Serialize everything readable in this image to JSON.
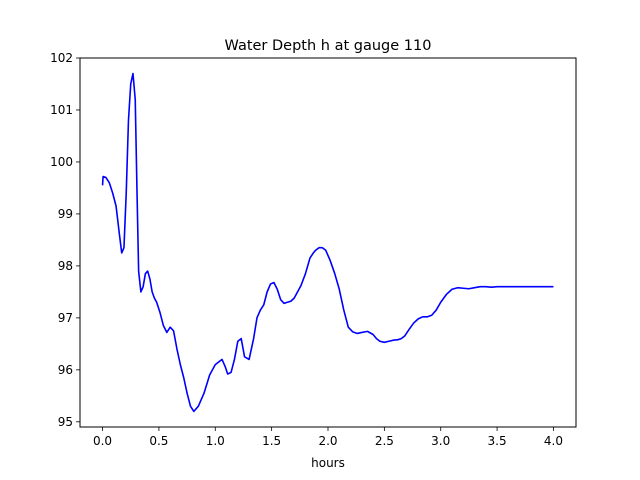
{
  "chart_data": {
    "type": "line",
    "title": "Water Depth h at gauge 110",
    "xlabel": "hours",
    "ylabel": "",
    "xlim": [
      -0.2,
      4.2
    ],
    "ylim": [
      94.9,
      102.0
    ],
    "xticks": [
      0.0,
      0.5,
      1.0,
      1.5,
      2.0,
      2.5,
      3.0,
      3.5,
      4.0
    ],
    "xtick_labels": [
      "0.0",
      "0.5",
      "1.0",
      "1.5",
      "2.0",
      "2.5",
      "3.0",
      "3.5",
      "4.0"
    ],
    "yticks": [
      95,
      96,
      97,
      98,
      99,
      100,
      101,
      102
    ],
    "ytick_labels": [
      "95",
      "96",
      "97",
      "98",
      "99",
      "100",
      "101",
      "102"
    ],
    "grid": false,
    "legend": "none",
    "series": [
      {
        "color": "#0000ff",
        "x": [
          0.0,
          0.005,
          0.03,
          0.06,
          0.09,
          0.12,
          0.15,
          0.17,
          0.19,
          0.21,
          0.23,
          0.25,
          0.27,
          0.29,
          0.305,
          0.32,
          0.34,
          0.36,
          0.38,
          0.4,
          0.42,
          0.44,
          0.46,
          0.48,
          0.51,
          0.54,
          0.57,
          0.6,
          0.63,
          0.66,
          0.69,
          0.72,
          0.75,
          0.78,
          0.81,
          0.85,
          0.9,
          0.95,
          1.0,
          1.03,
          1.06,
          1.09,
          1.11,
          1.14,
          1.17,
          1.2,
          1.23,
          1.26,
          1.3,
          1.34,
          1.37,
          1.4,
          1.43,
          1.46,
          1.49,
          1.52,
          1.55,
          1.58,
          1.61,
          1.64,
          1.67,
          1.7,
          1.73,
          1.76,
          1.8,
          1.84,
          1.87,
          1.89,
          1.92,
          1.95,
          1.98,
          2.02,
          2.06,
          2.1,
          2.14,
          2.18,
          2.22,
          2.26,
          2.3,
          2.35,
          2.4,
          2.43,
          2.46,
          2.5,
          2.54,
          2.58,
          2.62,
          2.65,
          2.68,
          2.72,
          2.76,
          2.8,
          2.84,
          2.88,
          2.92,
          2.96,
          3.0,
          3.05,
          3.1,
          3.15,
          3.2,
          3.25,
          3.3,
          3.35,
          3.4,
          3.45,
          3.5,
          3.55,
          3.6,
          3.65,
          3.7,
          3.75,
          3.8,
          3.85,
          3.9,
          3.95,
          4.0
        ],
        "values": [
          99.55,
          99.72,
          99.7,
          99.6,
          99.4,
          99.15,
          98.6,
          98.25,
          98.35,
          99.4,
          100.8,
          101.5,
          101.7,
          101.2,
          99.5,
          97.9,
          97.5,
          97.6,
          97.85,
          97.9,
          97.75,
          97.5,
          97.38,
          97.3,
          97.1,
          96.85,
          96.72,
          96.82,
          96.75,
          96.4,
          96.1,
          95.85,
          95.55,
          95.3,
          95.2,
          95.3,
          95.55,
          95.9,
          96.1,
          96.15,
          96.2,
          96.05,
          95.92,
          95.95,
          96.2,
          96.55,
          96.6,
          96.25,
          96.2,
          96.6,
          97.0,
          97.15,
          97.25,
          97.5,
          97.65,
          97.68,
          97.55,
          97.35,
          97.28,
          97.3,
          97.32,
          97.38,
          97.5,
          97.62,
          97.85,
          98.15,
          98.25,
          98.3,
          98.35,
          98.35,
          98.3,
          98.1,
          97.85,
          97.55,
          97.15,
          96.82,
          96.73,
          96.7,
          96.72,
          96.74,
          96.68,
          96.6,
          96.55,
          96.53,
          96.55,
          96.57,
          96.58,
          96.6,
          96.65,
          96.78,
          96.9,
          96.98,
          97.02,
          97.02,
          97.05,
          97.15,
          97.3,
          97.45,
          97.55,
          97.58,
          97.57,
          97.56,
          97.58,
          97.6,
          97.6,
          97.59,
          97.6,
          97.6,
          97.6,
          97.6,
          97.6,
          97.6,
          97.6,
          97.6,
          97.6,
          97.6,
          97.6
        ]
      }
    ]
  }
}
